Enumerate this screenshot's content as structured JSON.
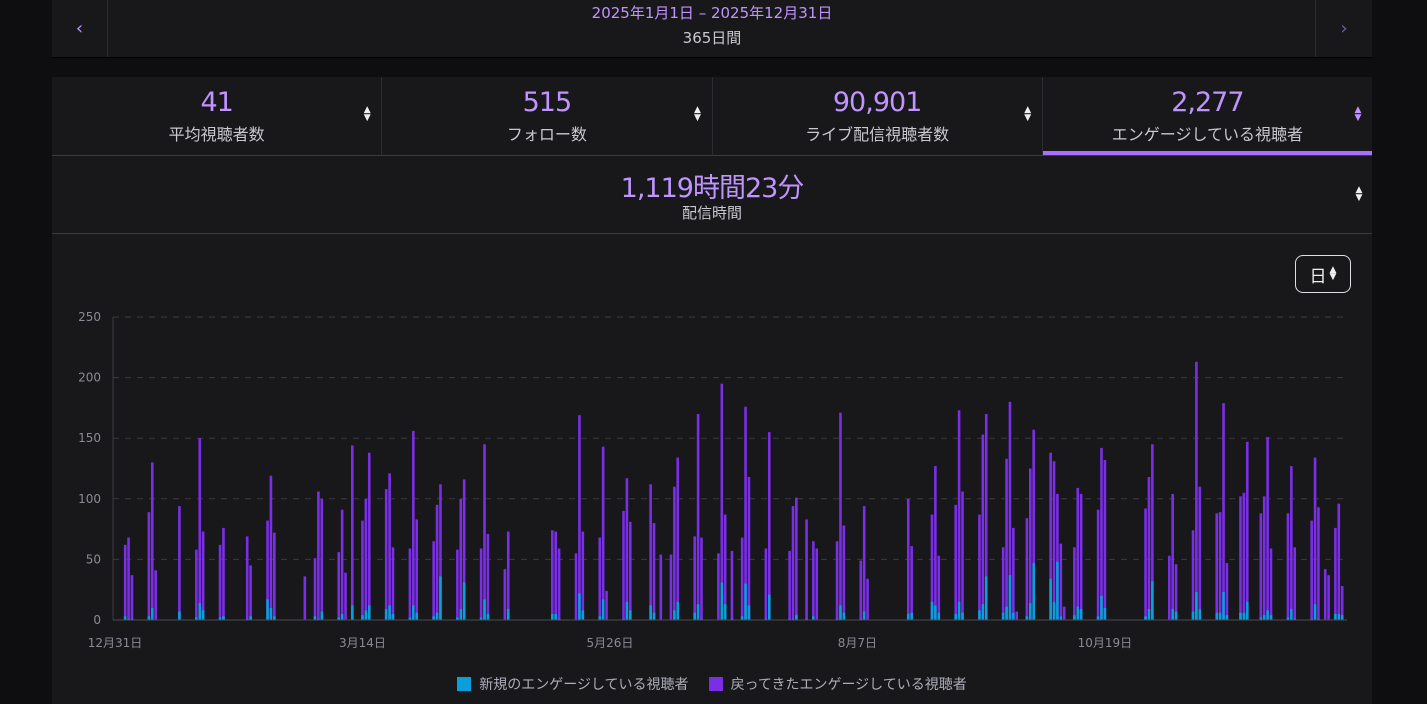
{
  "date_nav": {
    "range": "2025年1月1日 – 2025年12月31日",
    "days": "365日間",
    "prev_icon": "chevron-left-icon",
    "next_icon": "chevron-right-icon"
  },
  "stats": {
    "tabs": [
      {
        "value": "41",
        "label": "平均視聴者数",
        "active": false
      },
      {
        "value": "515",
        "label": "フォロー数",
        "active": false
      },
      {
        "value": "90,901",
        "label": "ライブ配信視聴者数",
        "active": false
      },
      {
        "value": "2,277",
        "label": "エンゲージしている視聴者",
        "active": true
      }
    ],
    "stream_time": {
      "value": "1,119時間23分",
      "label": "配信時間"
    }
  },
  "interval_select": {
    "value": "日"
  },
  "colors": {
    "accent": "#a970ff",
    "new": "#0a9fdb",
    "returning": "#7a2ee6",
    "background": "#18181b"
  },
  "chart_data": {
    "type": "bar",
    "stacked": true,
    "x_type": "date",
    "xlim": [
      "2024-12-31",
      "2025-12-31"
    ],
    "ylim": [
      0,
      250
    ],
    "y_ticks": [
      0,
      50,
      100,
      150,
      200,
      250
    ],
    "x_tick_labels": [
      {
        "date": "2024-12-31",
        "label": "12月31日"
      },
      {
        "date": "2025-03-14",
        "label": "3月14日"
      },
      {
        "date": "2025-05-26",
        "label": "5月26日"
      },
      {
        "date": "2025-08-07",
        "label": "8月7日"
      },
      {
        "date": "2025-10-19",
        "label": "10月19日"
      }
    ],
    "grid": "horizontal-dashed",
    "legend_position": "bottom",
    "series": [
      {
        "name": "新規のエンゲージしている視聴者",
        "color": "#0a9fdb"
      },
      {
        "name": "戻ってきたエンゲージしている視聴者",
        "color": "#7a2ee6"
      }
    ],
    "columns": [
      "date",
      "new",
      "returning"
    ],
    "rows": [
      [
        "2025-01-03",
        3,
        59
      ],
      [
        "2025-01-04",
        1,
        67
      ],
      [
        "2025-01-05",
        1,
        36
      ],
      [
        "2025-01-10",
        3,
        86
      ],
      [
        "2025-01-11",
        10,
        120
      ],
      [
        "2025-01-12",
        0,
        41
      ],
      [
        "2025-01-19",
        7,
        87
      ],
      [
        "2025-01-24",
        2,
        56
      ],
      [
        "2025-01-25",
        14,
        136
      ],
      [
        "2025-01-26",
        8,
        65
      ],
      [
        "2025-01-31",
        2,
        60
      ],
      [
        "2025-02-01",
        3,
        73
      ],
      [
        "2025-02-08",
        1,
        68
      ],
      [
        "2025-02-09",
        3,
        42
      ],
      [
        "2025-02-14",
        17,
        65
      ],
      [
        "2025-02-15",
        10,
        109
      ],
      [
        "2025-02-16",
        3,
        69
      ],
      [
        "2025-02-25",
        0,
        36
      ],
      [
        "2025-02-28",
        3,
        48
      ],
      [
        "2025-03-01",
        1,
        105
      ],
      [
        "2025-03-02",
        7,
        93
      ],
      [
        "2025-03-07",
        2,
        54
      ],
      [
        "2025-03-08",
        5,
        86
      ],
      [
        "2025-03-09",
        0,
        39
      ],
      [
        "2025-03-11",
        12,
        132
      ],
      [
        "2025-03-14",
        4,
        78
      ],
      [
        "2025-03-15",
        8,
        92
      ],
      [
        "2025-03-16",
        12,
        126
      ],
      [
        "2025-03-21",
        9,
        99
      ],
      [
        "2025-03-22",
        12,
        109
      ],
      [
        "2025-03-23",
        5,
        55
      ],
      [
        "2025-03-28",
        2,
        57
      ],
      [
        "2025-03-29",
        12,
        144
      ],
      [
        "2025-03-30",
        6,
        77
      ],
      [
        "2025-04-04",
        3,
        62
      ],
      [
        "2025-04-05",
        6,
        89
      ],
      [
        "2025-04-06",
        36,
        76
      ],
      [
        "2025-04-11",
        2,
        56
      ],
      [
        "2025-04-12",
        9,
        91
      ],
      [
        "2025-04-13",
        31,
        85
      ],
      [
        "2025-04-18",
        2,
        57
      ],
      [
        "2025-04-19",
        17,
        128
      ],
      [
        "2025-04-20",
        5,
        66
      ],
      [
        "2025-04-25",
        0,
        42
      ],
      [
        "2025-04-26",
        9,
        64
      ],
      [
        "2025-05-09",
        5,
        69
      ],
      [
        "2025-05-10",
        5,
        68
      ],
      [
        "2025-05-11",
        1,
        58
      ],
      [
        "2025-05-16",
        0,
        55
      ],
      [
        "2025-05-17",
        22,
        147
      ],
      [
        "2025-05-18",
        8,
        65
      ],
      [
        "2025-05-23",
        3,
        65
      ],
      [
        "2025-05-24",
        17,
        126
      ],
      [
        "2025-05-25",
        0,
        24
      ],
      [
        "2025-05-30",
        1,
        89
      ],
      [
        "2025-05-31",
        15,
        102
      ],
      [
        "2025-06-01",
        8,
        73
      ],
      [
        "2025-06-07",
        12,
        100
      ],
      [
        "2025-06-08",
        6,
        74
      ],
      [
        "2025-06-10",
        0,
        54
      ],
      [
        "2025-06-13",
        0,
        54
      ],
      [
        "2025-06-14",
        8,
        102
      ],
      [
        "2025-06-15",
        15,
        119
      ],
      [
        "2025-06-20",
        6,
        63
      ],
      [
        "2025-06-21",
        13,
        157
      ],
      [
        "2025-06-22",
        1,
        67
      ],
      [
        "2025-06-27",
        0,
        55
      ],
      [
        "2025-06-28",
        31,
        164
      ],
      [
        "2025-06-29",
        13,
        74
      ],
      [
        "2025-07-01",
        1,
        56
      ],
      [
        "2025-07-04",
        3,
        65
      ],
      [
        "2025-07-05",
        30,
        146
      ],
      [
        "2025-07-06",
        12,
        106
      ],
      [
        "2025-07-11",
        1,
        58
      ],
      [
        "2025-07-12",
        21,
        134
      ],
      [
        "2025-07-18",
        1,
        56
      ],
      [
        "2025-07-19",
        1,
        93
      ],
      [
        "2025-07-20",
        4,
        97
      ],
      [
        "2025-07-23",
        1,
        82
      ],
      [
        "2025-07-25",
        3,
        62
      ],
      [
        "2025-07-26",
        0,
        59
      ],
      [
        "2025-08-01",
        1,
        64
      ],
      [
        "2025-08-02",
        12,
        159
      ],
      [
        "2025-08-03",
        6,
        72
      ],
      [
        "2025-08-08",
        1,
        48
      ],
      [
        "2025-08-09",
        7,
        87
      ],
      [
        "2025-08-10",
        0,
        34
      ],
      [
        "2025-08-22",
        5,
        95
      ],
      [
        "2025-08-23",
        6,
        55
      ],
      [
        "2025-08-29",
        15,
        72
      ],
      [
        "2025-08-30",
        12,
        115
      ],
      [
        "2025-08-31",
        6,
        47
      ],
      [
        "2025-09-05",
        5,
        90
      ],
      [
        "2025-09-06",
        15,
        158
      ],
      [
        "2025-09-07",
        6,
        100
      ],
      [
        "2025-09-12",
        8,
        79
      ],
      [
        "2025-09-13",
        13,
        140
      ],
      [
        "2025-09-14",
        36,
        134
      ],
      [
        "2025-09-19",
        6,
        54
      ],
      [
        "2025-09-20",
        11,
        122
      ],
      [
        "2025-09-21",
        37,
        143
      ],
      [
        "2025-09-22",
        6,
        70
      ],
      [
        "2025-09-23",
        0,
        7
      ],
      [
        "2025-09-26",
        3,
        81
      ],
      [
        "2025-09-27",
        14,
        111
      ],
      [
        "2025-09-28",
        47,
        110
      ],
      [
        "2025-10-03",
        34,
        104
      ],
      [
        "2025-10-04",
        15,
        116
      ],
      [
        "2025-10-05",
        48,
        56
      ],
      [
        "2025-10-06",
        3,
        60
      ],
      [
        "2025-10-07",
        0,
        11
      ],
      [
        "2025-10-10",
        4,
        56
      ],
      [
        "2025-10-11",
        11,
        98
      ],
      [
        "2025-10-12",
        9,
        95
      ],
      [
        "2025-10-17",
        3,
        88
      ],
      [
        "2025-10-18",
        20,
        122
      ],
      [
        "2025-10-19",
        10,
        122
      ],
      [
        "2025-10-31",
        3,
        89
      ],
      [
        "2025-11-01",
        9,
        109
      ],
      [
        "2025-11-02",
        32,
        113
      ],
      [
        "2025-11-07",
        0,
        53
      ],
      [
        "2025-11-08",
        9,
        95
      ],
      [
        "2025-11-09",
        7,
        39
      ],
      [
        "2025-11-14",
        7,
        67
      ],
      [
        "2025-11-15",
        23,
        190
      ],
      [
        "2025-11-16",
        9,
        101
      ],
      [
        "2025-11-21",
        6,
        82
      ],
      [
        "2025-11-22",
        6,
        83
      ],
      [
        "2025-11-23",
        23,
        156
      ],
      [
        "2025-11-24",
        4,
        43
      ],
      [
        "2025-11-28",
        6,
        96
      ],
      [
        "2025-11-29",
        6,
        99
      ],
      [
        "2025-11-30",
        15,
        132
      ],
      [
        "2025-12-04",
        2,
        86
      ],
      [
        "2025-12-05",
        4,
        98
      ],
      [
        "2025-12-06",
        8,
        143
      ],
      [
        "2025-12-07",
        4,
        55
      ],
      [
        "2025-12-12",
        2,
        86
      ],
      [
        "2025-12-13",
        9,
        118
      ],
      [
        "2025-12-14",
        1,
        59
      ],
      [
        "2025-12-19",
        1,
        81
      ],
      [
        "2025-12-20",
        13,
        121
      ],
      [
        "2025-12-21",
        1,
        92
      ],
      [
        "2025-12-23",
        0,
        42
      ],
      [
        "2025-12-24",
        0,
        37
      ],
      [
        "2025-12-26",
        5,
        71
      ],
      [
        "2025-12-27",
        5,
        91
      ],
      [
        "2025-12-28",
        4,
        24
      ]
    ]
  }
}
